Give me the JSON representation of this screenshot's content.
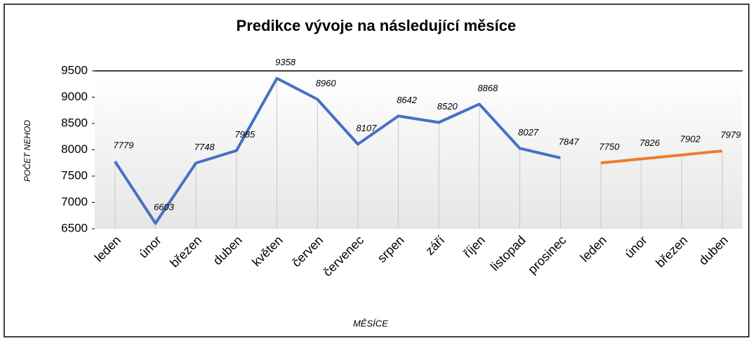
{
  "chart_data": {
    "type": "line",
    "title": "Predikce vývoje na následující měsíce",
    "x_label": "MĚSÍCE",
    "y_label": "POČET NEHOD",
    "categories": [
      "leden",
      "únor",
      "březen",
      "duben",
      "květen",
      "červen",
      "červenec",
      "srpen",
      "září",
      "říjen",
      "listopad",
      "prosinec",
      "leden",
      "únor",
      "březen",
      "duben"
    ],
    "series": [
      {
        "color": "#4472c4",
        "values": [
          7779,
          6603,
          7748,
          7985,
          9358,
          8960,
          8107,
          8642,
          8520,
          8868,
          8027,
          7847,
          null,
          null,
          null,
          null
        ]
      },
      {
        "color": "#ed7d31",
        "values": [
          null,
          null,
          null,
          null,
          null,
          null,
          null,
          null,
          null,
          null,
          null,
          null,
          7750,
          7826,
          7902,
          7979
        ]
      }
    ],
    "ylim": [
      6500,
      9500
    ],
    "yticks": [
      6500,
      7000,
      7500,
      8000,
      8500,
      9000,
      9500
    ]
  }
}
